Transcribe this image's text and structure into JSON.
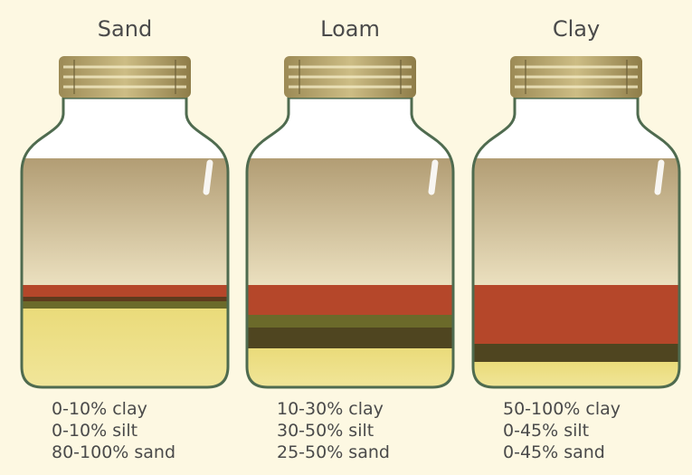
{
  "jars": [
    {
      "title": "Sand",
      "lines": [
        "0-10% clay",
        "0-10% silt",
        "80-100% sand"
      ]
    },
    {
      "title": "Loam",
      "lines": [
        "10-30% clay",
        "30-50% silt",
        "25-50% sand"
      ]
    },
    {
      "title": "Clay",
      "lines": [
        "50-100% clay",
        "0-45% silt",
        "0-45% sand"
      ]
    }
  ]
}
